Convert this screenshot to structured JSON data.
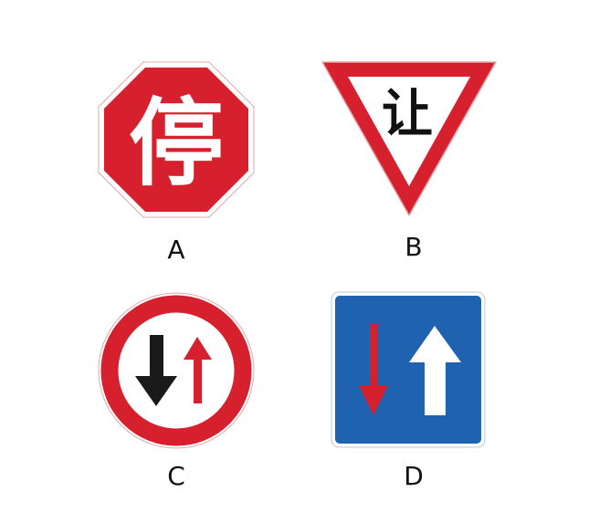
{
  "options": [
    {
      "label": "A",
      "sign_text": "停",
      "shape": "octagon",
      "icon": "stop-sign-icon",
      "colors": {
        "background": "#d7202d",
        "text": "#ffffff",
        "border": "#ffffff"
      }
    },
    {
      "label": "B",
      "sign_text": "让",
      "shape": "inverted-triangle",
      "icon": "yield-sign-icon",
      "colors": {
        "border": "#d7202d",
        "background": "#ffffff",
        "text": "#111111"
      }
    },
    {
      "label": "C",
      "sign_text": "",
      "shape": "circle",
      "icon": "give-way-to-oncoming-traffic-icon",
      "colors": {
        "ring": "#d7202d",
        "background": "#ffffff",
        "down_arrow": "#1a1a1a",
        "up_arrow": "#d7202d"
      }
    },
    {
      "label": "D",
      "sign_text": "",
      "shape": "square",
      "icon": "priority-over-oncoming-traffic-icon",
      "colors": {
        "background": "#1e62b0",
        "down_arrow": "#d7202d",
        "up_arrow": "#ffffff"
      }
    }
  ]
}
